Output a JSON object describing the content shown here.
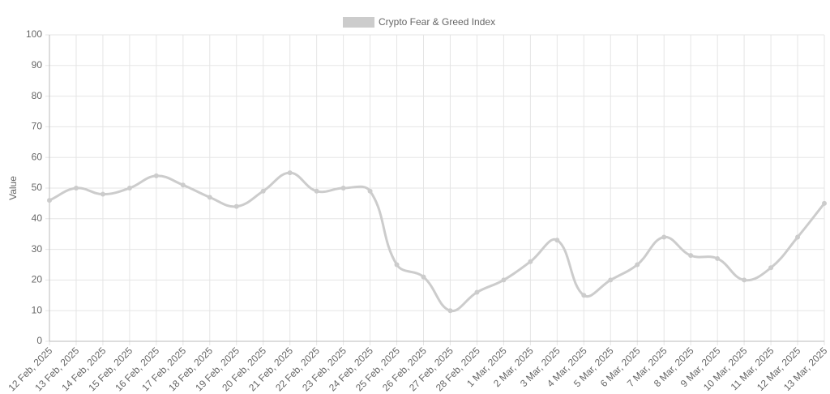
{
  "chart_data": {
    "type": "line",
    "categories": [
      "12 Feb, 2025",
      "13 Feb, 2025",
      "14 Feb, 2025",
      "15 Feb, 2025",
      "16 Feb, 2025",
      "17 Feb, 2025",
      "18 Feb, 2025",
      "19 Feb, 2025",
      "20 Feb, 2025",
      "21 Feb, 2025",
      "22 Feb, 2025",
      "23 Feb, 2025",
      "24 Feb, 2025",
      "25 Feb, 2025",
      "26 Feb, 2025",
      "27 Feb, 2025",
      "28 Feb, 2025",
      "1 Mar, 2025",
      "2 Mar, 2025",
      "3 Mar, 2025",
      "4 Mar, 2025",
      "5 Mar, 2025",
      "6 Mar, 2025",
      "7 Mar, 2025",
      "8 Mar, 2025",
      "9 Mar, 2025",
      "10 Mar, 2025",
      "11 Mar, 2025",
      "12 Mar, 2025",
      "13 Mar, 2025"
    ],
    "series": [
      {
        "name": "Crypto Fear & Greed Index",
        "color": "#cccccc",
        "values": [
          46,
          50,
          48,
          50,
          54,
          51,
          47,
          44,
          49,
          55,
          49,
          50,
          49,
          25,
          21,
          10,
          16,
          20,
          26,
          33,
          15,
          20,
          25,
          34,
          28,
          27,
          20,
          24,
          34,
          45
        ]
      }
    ],
    "y_label": "Value",
    "ylim": [
      0,
      100
    ],
    "yticks": [
      0,
      10,
      20,
      30,
      40,
      50,
      60,
      70,
      80,
      90,
      100
    ],
    "grid": true
  }
}
